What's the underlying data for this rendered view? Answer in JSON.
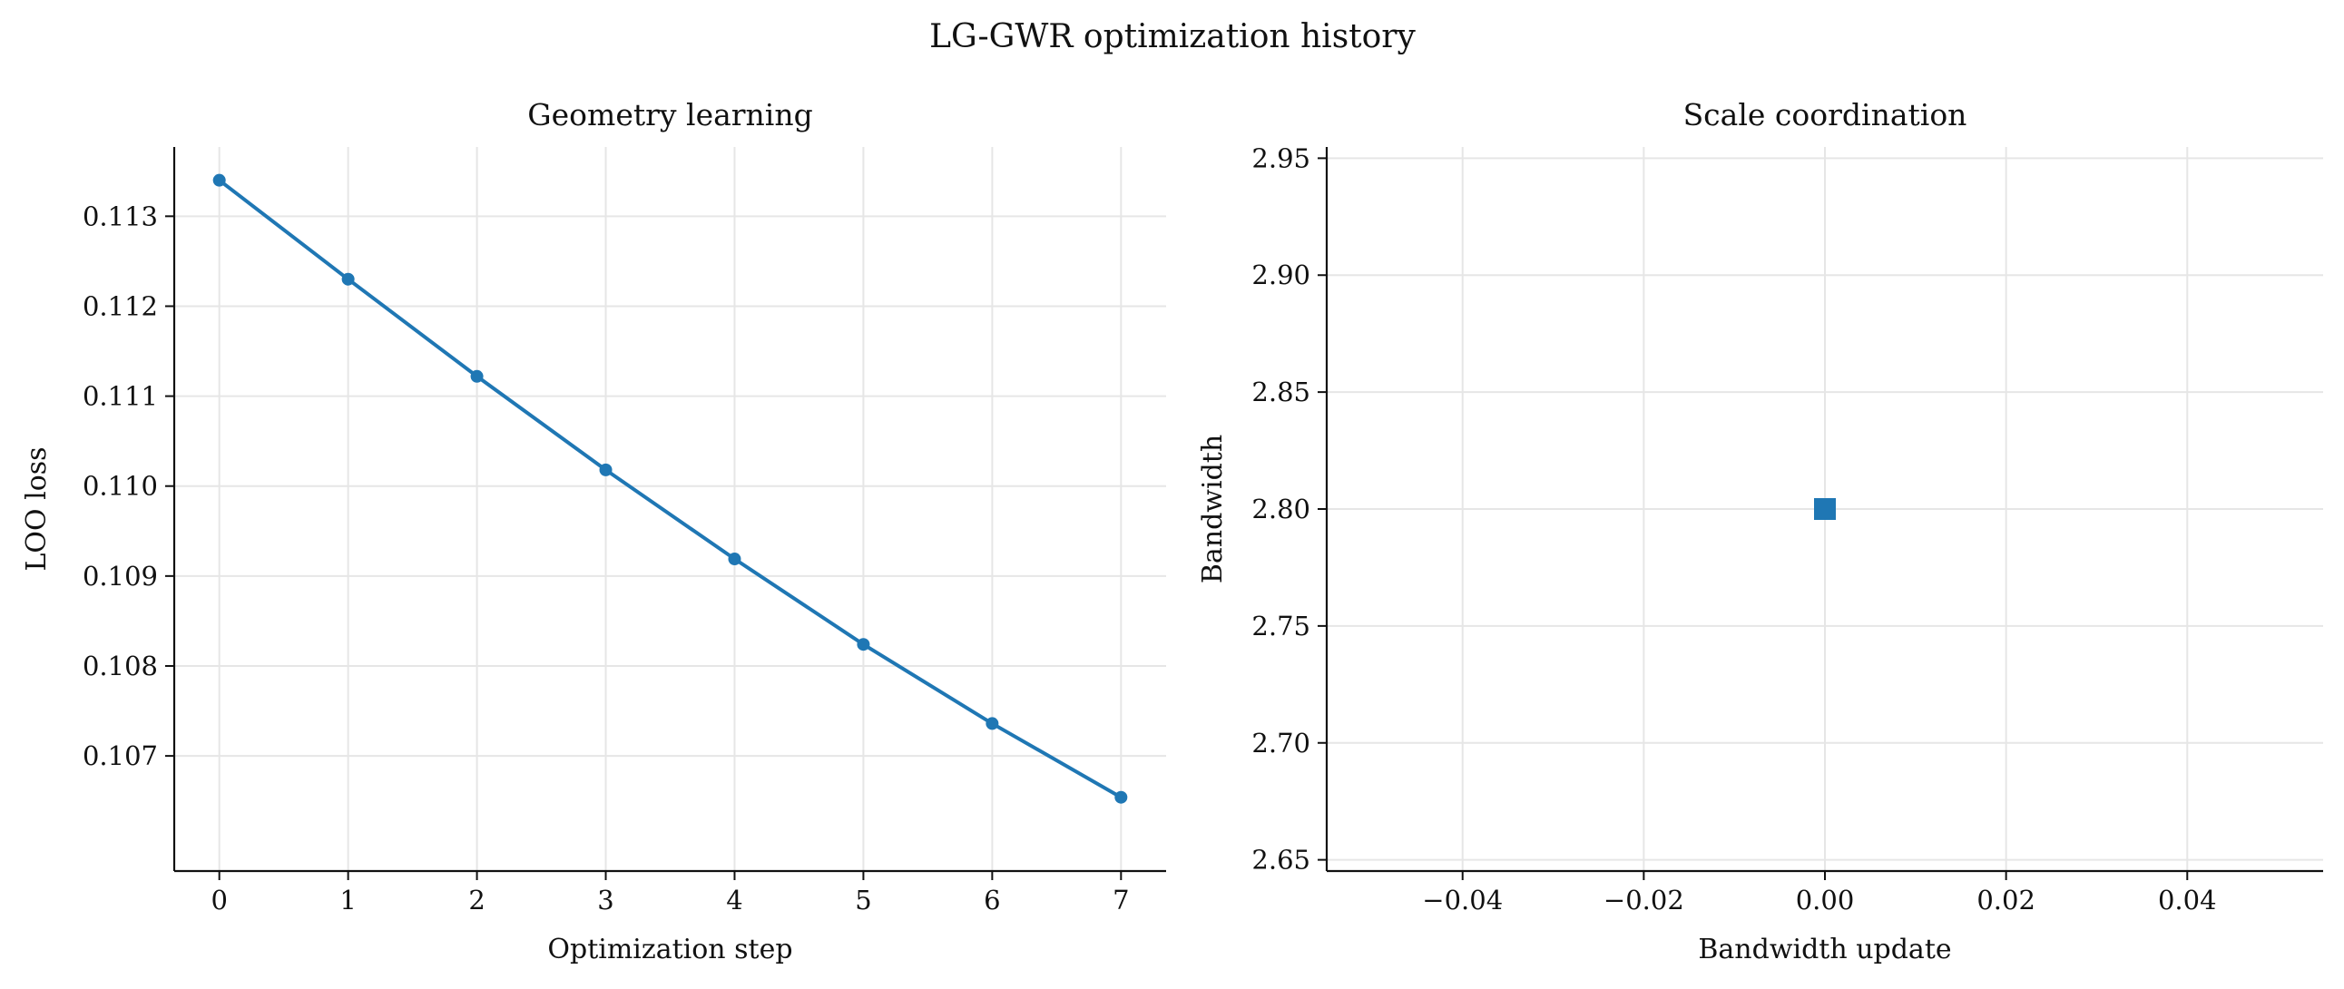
{
  "figure": {
    "title": "LG-GWR optimization history"
  },
  "chart_data": [
    {
      "type": "line",
      "title": "Geometry learning",
      "xlabel": "Optimization step",
      "ylabel": "LOO loss",
      "x": [
        0,
        1,
        2,
        3,
        4,
        5,
        6,
        7
      ],
      "series": [
        {
          "values": [
            0.1134,
            0.1123,
            0.11122,
            0.11018,
            0.10919,
            0.10824,
            0.10736,
            0.10654
          ],
          "color": "#1f77b4",
          "marker": "circle"
        }
      ],
      "xlim": [
        -0.35,
        7.35
      ],
      "ylim": [
        0.10572,
        0.11377
      ],
      "xticks": [
        0,
        1,
        2,
        3,
        4,
        5,
        6,
        7
      ],
      "xtick_labels": [
        "0",
        "1",
        "2",
        "3",
        "4",
        "5",
        "6",
        "7"
      ],
      "yticks": [
        0.107,
        0.108,
        0.109,
        0.11,
        0.111,
        0.112,
        0.113
      ],
      "ytick_labels": [
        "0.107",
        "0.108",
        "0.109",
        "0.110",
        "0.111",
        "0.112",
        "0.113"
      ],
      "grid": true,
      "legend": "none"
    },
    {
      "type": "scatter",
      "title": "Scale coordination",
      "xlabel": "Bandwidth update",
      "ylabel": "Bandwidth",
      "points": [
        {
          "x": 0.0,
          "y": 2.8
        }
      ],
      "color": "#1f77b4",
      "marker": "square",
      "xlim": [
        -0.055,
        0.055
      ],
      "ylim": [
        2.6452,
        2.9548
      ],
      "xticks": [
        -0.04,
        -0.02,
        0.0,
        0.02,
        0.04
      ],
      "xtick_labels": [
        "−0.04",
        "−0.02",
        "0.00",
        "0.02",
        "0.04"
      ],
      "yticks": [
        2.65,
        2.7,
        2.75,
        2.8,
        2.85,
        2.9,
        2.95
      ],
      "ytick_labels": [
        "2.65",
        "2.70",
        "2.75",
        "2.80",
        "2.85",
        "2.90",
        "2.95"
      ],
      "grid": true,
      "legend": "none"
    }
  ]
}
